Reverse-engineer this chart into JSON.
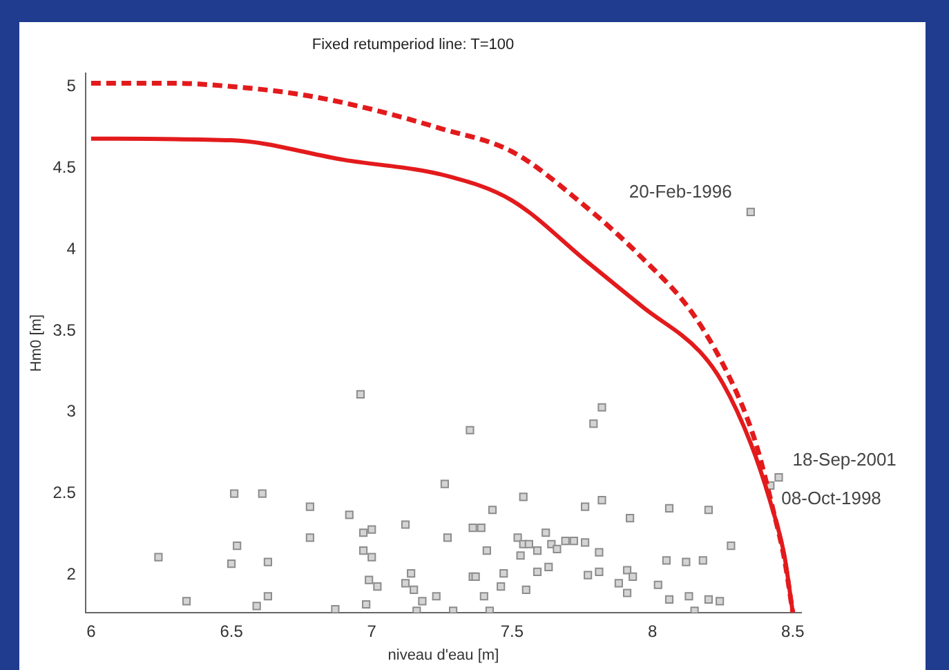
{
  "chart_data": {
    "type": "scatter",
    "title": "Fixed retumperiod line: T=100",
    "xlabel": "niveau d'eau [m]",
    "ylabel": "Hm0 [m]",
    "xlim": [
      5.98,
      8.53
    ],
    "ylim": [
      1.77,
      5.08
    ],
    "xticks": [
      6,
      6.5,
      7,
      7.5,
      8,
      8.5
    ],
    "yticks": [
      2,
      2.5,
      3,
      3.5,
      4,
      4.5,
      5
    ],
    "grid": false,
    "legend": false,
    "marker": "square",
    "series": [
      {
        "type": "line",
        "color": "#e31a1c",
        "line_style": "dashed",
        "marker": "none",
        "x": [
          6.0,
          6.3,
          6.5,
          6.75,
          7.0,
          7.25,
          7.5,
          7.75,
          7.95,
          8.15,
          8.3,
          8.37,
          8.43,
          8.47,
          8.5
        ],
        "values": [
          5.02,
          5.02,
          5.0,
          4.95,
          4.86,
          4.74,
          4.6,
          4.28,
          3.97,
          3.59,
          3.12,
          2.8,
          2.4,
          2.1,
          1.77
        ]
      },
      {
        "type": "line",
        "color": "#e31a1c",
        "line_style": "solid",
        "marker": "none",
        "x": [
          6.0,
          6.5,
          6.9,
          7.27,
          7.5,
          7.77,
          7.97,
          8.17,
          8.25,
          8.35,
          8.42,
          8.47,
          8.5
        ],
        "values": [
          4.68,
          4.67,
          4.55,
          4.45,
          4.3,
          3.92,
          3.64,
          3.37,
          3.18,
          2.81,
          2.45,
          2.12,
          1.77
        ]
      },
      {
        "color": "#8c8c8c",
        "x": [
          6.24,
          6.34,
          6.51,
          6.52,
          6.5,
          6.61,
          6.63,
          6.63,
          6.59,
          6.78,
          6.78,
          6.87,
          6.92,
          6.96,
          6.97,
          7.0,
          6.97,
          7.0,
          6.99,
          7.02,
          6.98,
          7.12,
          7.14,
          7.15,
          7.18,
          7.16,
          7.23,
          7.12,
          7.26,
          7.27,
          7.29,
          7.35,
          7.36,
          7.36,
          7.82,
          7.79,
          7.54,
          7.43,
          7.39,
          7.76,
          7.82,
          7.92,
          8.06,
          8.2,
          7.52,
          7.54,
          7.56,
          7.62,
          7.64,
          7.66,
          7.69,
          7.72,
          7.76,
          7.81,
          7.41,
          7.53,
          7.59,
          8.28,
          8.05,
          8.12,
          8.18,
          7.37,
          7.47,
          7.59,
          7.63,
          7.77,
          7.81,
          7.91,
          7.93,
          7.88,
          7.46,
          7.55,
          7.91,
          8.02,
          7.4,
          8.06,
          8.13,
          8.2,
          8.24,
          7.42,
          8.15,
          8.45,
          8.42,
          8.35
        ],
        "values": [
          2.11,
          1.84,
          2.5,
          2.18,
          2.07,
          2.5,
          2.08,
          1.87,
          1.81,
          2.42,
          2.23,
          1.79,
          2.37,
          3.11,
          2.26,
          2.28,
          2.15,
          2.11,
          1.97,
          1.93,
          1.82,
          1.95,
          2.01,
          1.91,
          1.84,
          1.78,
          1.87,
          2.31,
          2.56,
          2.23,
          1.78,
          2.89,
          1.99,
          2.29,
          3.03,
          2.93,
          2.48,
          2.4,
          2.29,
          2.42,
          2.46,
          2.35,
          2.41,
          2.4,
          2.23,
          2.19,
          2.19,
          2.26,
          2.19,
          2.16,
          2.21,
          2.21,
          2.2,
          2.14,
          2.15,
          2.12,
          2.15,
          2.18,
          2.09,
          2.08,
          2.09,
          1.99,
          2.01,
          2.02,
          2.05,
          2.0,
          2.02,
          2.03,
          1.99,
          1.95,
          1.93,
          1.91,
          1.89,
          1.94,
          1.87,
          1.85,
          1.87,
          1.85,
          1.84,
          1.78,
          1.78,
          2.6,
          2.55,
          4.23
        ]
      }
    ],
    "annotations": [
      {
        "text": "20-Feb-1996",
        "x": 8.35,
        "y": 4.23
      },
      {
        "text": "18-Sep-2001",
        "x": 8.45,
        "y": 2.6
      },
      {
        "text": "08-Oct-1998",
        "x": 8.42,
        "y": 2.55
      }
    ]
  }
}
